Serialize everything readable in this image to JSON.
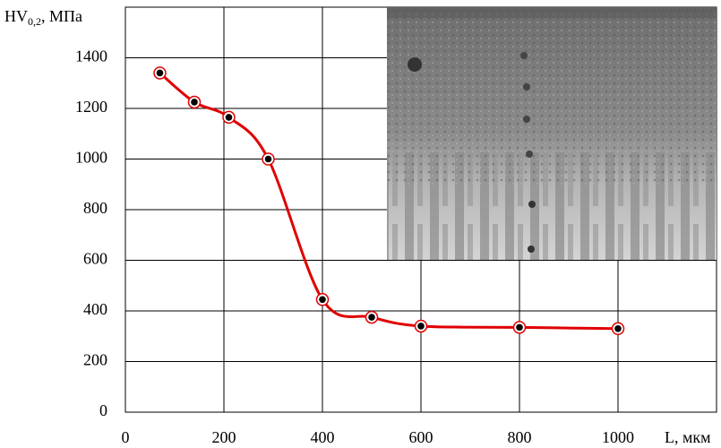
{
  "chart_data": {
    "type": "line",
    "y_label": {
      "main": "HV",
      "sub": "0,2",
      "rest": ", МПа"
    },
    "x_label": "L, мкм",
    "x": [
      70,
      140,
      210,
      290,
      400,
      500,
      600,
      800,
      1000
    ],
    "series": [
      {
        "color": "#e00000",
        "values": [
          1340,
          1225,
          1165,
          1000,
          445,
          375,
          340,
          335,
          330
        ]
      }
    ],
    "xlim": [
      0,
      1200
    ],
    "xticks": [
      0,
      200,
      400,
      600,
      800,
      1000
    ],
    "ylim": [
      0,
      1600
    ],
    "yticks": [
      0,
      200,
      400,
      600,
      800,
      1000,
      1200,
      1400
    ],
    "grid": true,
    "smooth": true
  }
}
